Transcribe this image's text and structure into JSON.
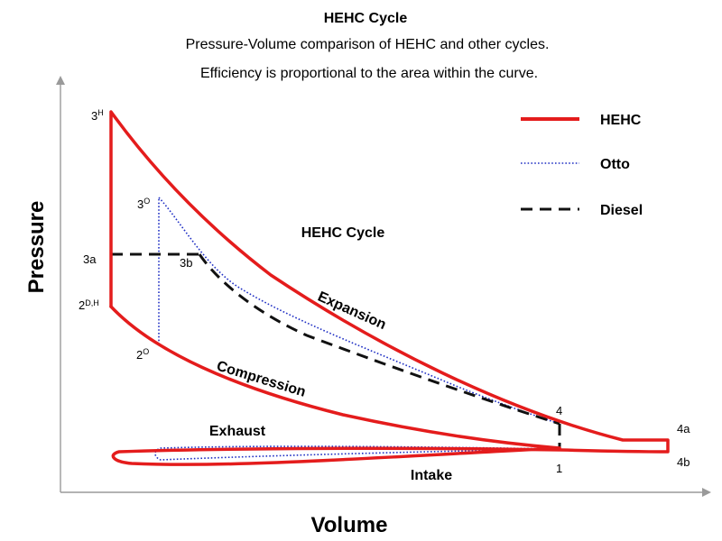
{
  "title": "HEHC Cycle",
  "subtitle_line1": "Pressure-Volume comparison of HEHC and other cycles.",
  "subtitle_line2": "Efficiency is proportional to the area within the curve.",
  "axes": {
    "x_label": "Volume",
    "y_label": "Pressure"
  },
  "legend": [
    {
      "name": "HEHC",
      "style": "solid",
      "color": "#e41c1c"
    },
    {
      "name": "Otto",
      "style": "dotted",
      "color": "#1f2fc4"
    },
    {
      "name": "Diesel",
      "style": "dashed",
      "color": "#111111"
    }
  ],
  "region_labels": {
    "cycle": "HEHC Cycle",
    "expansion": "Expansion",
    "compression": "Compression",
    "exhaust": "Exhaust",
    "intake": "Intake"
  },
  "point_labels": {
    "p3h_main": "3",
    "p3h_sup": "H",
    "p3o_main": "3",
    "p3o_sup": "O",
    "p3a": "3a",
    "p3b": "3b",
    "p2dh_main": "2",
    "p2dh_sup": "D,H",
    "p2o_main": "2",
    "p2o_sup": "O",
    "p4": "4",
    "p4a": "4a",
    "p4b": "4b",
    "p1": "1"
  }
}
